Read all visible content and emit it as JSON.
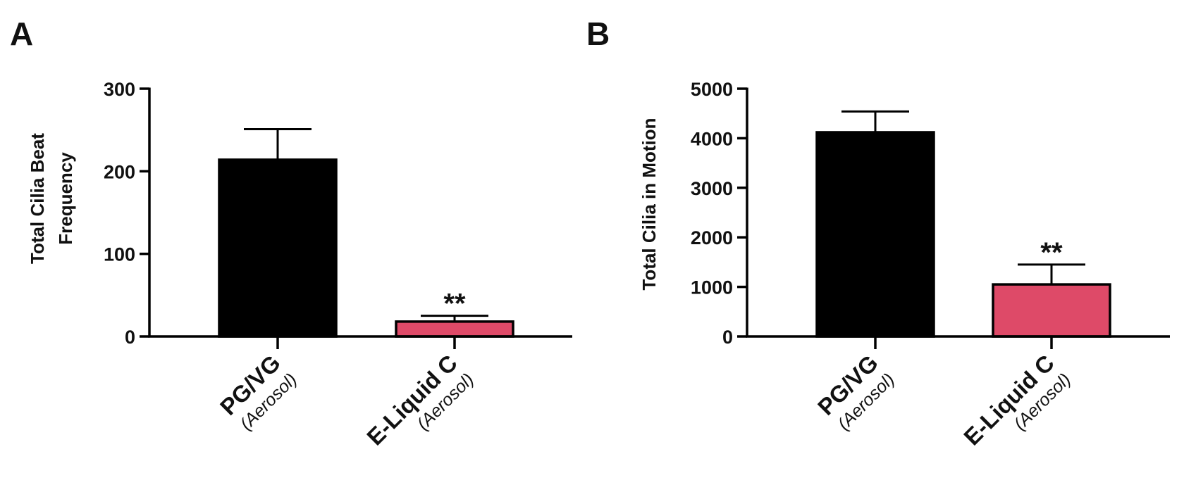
{
  "chart_data": [
    {
      "panel": "A",
      "type": "bar",
      "categories": [
        {
          "label": "PG/VG",
          "sublabel": "(Aerosol)"
        },
        {
          "label": "E-Liquid C",
          "sublabel": "(Aerosol)"
        }
      ],
      "values": [
        214,
        18
      ],
      "errors": [
        37,
        7
      ],
      "annotations": [
        "",
        "**"
      ],
      "colors": [
        "#000000",
        "#de4a68"
      ],
      "ylabel_lines": [
        "Total Cilia Beat",
        "Frequency"
      ],
      "ylim": [
        0,
        300
      ],
      "yticks": [
        0,
        100,
        200,
        300
      ],
      "grid": false,
      "legend": "none"
    },
    {
      "panel": "B",
      "type": "bar",
      "categories": [
        {
          "label": "PG/VG",
          "sublabel": "(Aerosol)"
        },
        {
          "label": "E-Liquid C",
          "sublabel": "(Aerosol)"
        }
      ],
      "values": [
        4120,
        1050
      ],
      "errors": [
        420,
        400
      ],
      "annotations": [
        "",
        "**"
      ],
      "colors": [
        "#000000",
        "#de4a68"
      ],
      "ylabel_lines": [
        "Total Cilia in Motion"
      ],
      "ylim": [
        0,
        5000
      ],
      "yticks": [
        0,
        1000,
        2000,
        3000,
        4000,
        5000
      ],
      "grid": false,
      "legend": "none"
    }
  ]
}
